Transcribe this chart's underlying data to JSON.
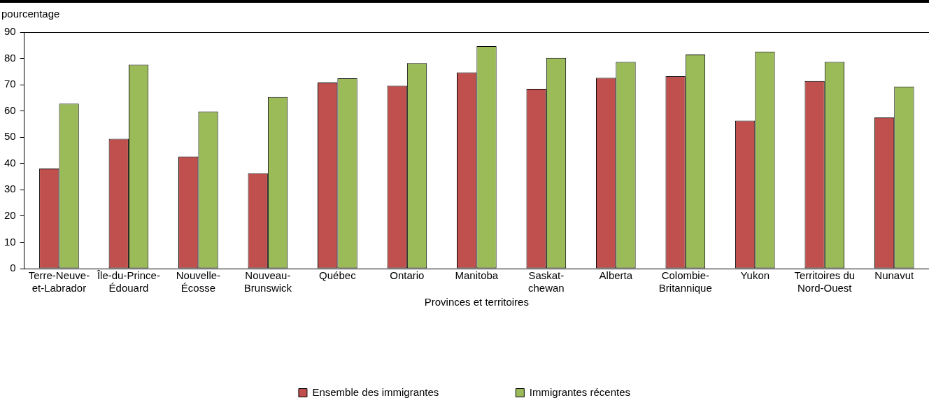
{
  "chart_data": {
    "type": "bar",
    "ylabel": "pourcentage",
    "xlabel": "Provinces et territoires",
    "categories": [
      "Terre-Neuve-et-Labrador",
      "Île-du-Prince-Édouard",
      "Nouvelle-Écosse",
      "Nouveau-Brunswick",
      "Québec",
      "Ontario",
      "Manitoba",
      "Saskat-chewan",
      "Alberta",
      "Colombie-Britannique",
      "Yukon",
      "Territoires du Nord-Ouest",
      "Nunavut"
    ],
    "series": [
      {
        "name": "Ensemble des immigrantes",
        "color": "#c0504d",
        "values": [
          38.1,
          49.4,
          42.7,
          36.3,
          70.8,
          69.6,
          74.7,
          68.4,
          72.6,
          73.2,
          56.3,
          71.4,
          57.5
        ]
      },
      {
        "name": "Immigrantes récentes",
        "color": "#9bbb59",
        "values": [
          62.8,
          77.6,
          59.8,
          65.3,
          72.4,
          78.2,
          84.7,
          80.2,
          78.7,
          81.5,
          82.6,
          78.7,
          69.3
        ]
      }
    ],
    "ylim": [
      0,
      90
    ],
    "yticks": [
      0,
      10,
      20,
      30,
      40,
      50,
      60,
      70,
      80,
      90
    ],
    "grid": false,
    "legend": "bottom"
  }
}
